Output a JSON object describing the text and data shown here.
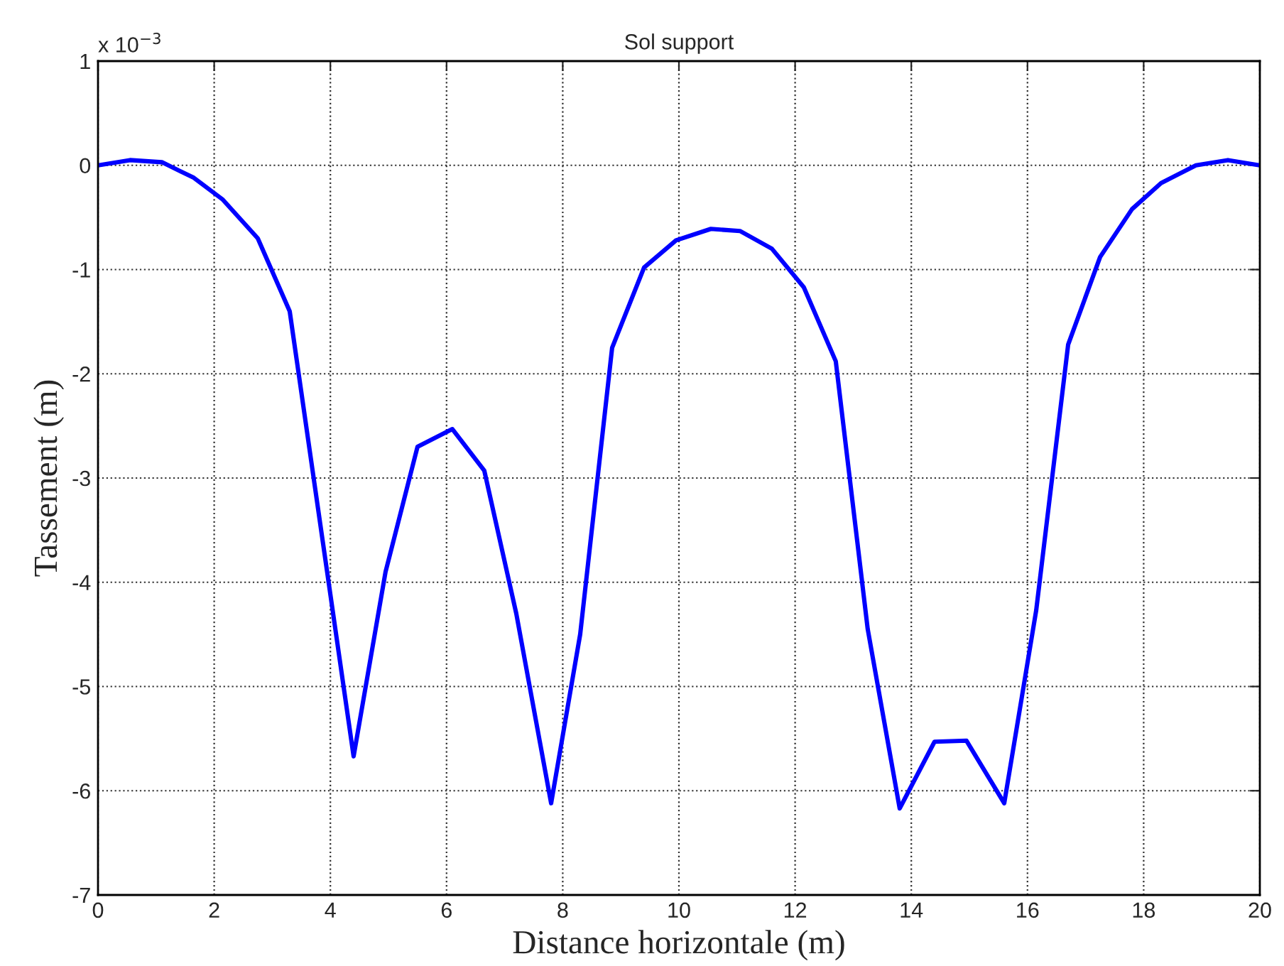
{
  "chart_data": {
    "type": "line",
    "title": "Sol support",
    "xlabel": "Distance horizontale (m)",
    "ylabel": "Tassement (m)",
    "annotations": [
      "x 10$^{−3}$"
    ],
    "x": [
      0,
      0.55,
      1.1,
      1.65,
      2.15,
      2.75,
      3.3,
      4.4,
      4.95,
      5.5,
      6.1,
      6.65,
      7.2,
      7.8,
      8.3,
      8.85,
      9.4,
      9.95,
      10.55,
      11.05,
      11.6,
      12.15,
      12.7,
      13.25,
      13.8,
      14.4,
      14.95,
      15.6,
      16.15,
      16.7,
      17.25,
      17.8,
      18.3,
      18.9,
      19.45,
      20
    ],
    "series": [
      {
        "color": "#0000ff",
        "values": [
          0,
          0.05,
          0.03,
          -0.12,
          -0.33,
          -0.7,
          -1.4,
          -5.67,
          -3.9,
          -2.7,
          -2.53,
          -2.93,
          -4.3,
          -6.12,
          -4.5,
          -1.75,
          -0.98,
          -0.72,
          -0.61,
          -0.63,
          -0.8,
          -1.17,
          -1.88,
          -4.45,
          -6.17,
          -5.53,
          -5.52,
          -6.12,
          -4.27,
          -1.72,
          -0.88,
          -0.42,
          -0.17,
          0,
          0.05,
          0
        ]
      }
    ],
    "xlim": [
      0,
      20
    ],
    "xticks": [
      0,
      2,
      4,
      6,
      8,
      10,
      12,
      14,
      16,
      18,
      20
    ],
    "ylim": [
      -7,
      1
    ],
    "yticks": [
      -7,
      -6,
      -5,
      -4,
      -3,
      -2,
      -1,
      0,
      1
    ],
    "grid": true,
    "marker": "none",
    "line_style": "solid"
  }
}
